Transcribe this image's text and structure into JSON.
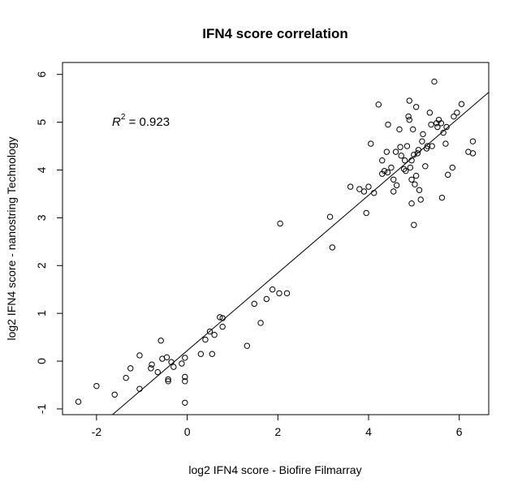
{
  "chart_data": {
    "type": "scatter",
    "title": "IFN4 score correlation",
    "xlabel": "log2 IFN4 score - Biofire Filmarray",
    "ylabel": "log2 IFN4 score - nanostring Technology",
    "xlim": [
      -2.75,
      6.65
    ],
    "ylim": [
      -1.12,
      6.25
    ],
    "xticks": [
      -2,
      0,
      2,
      4,
      6
    ],
    "yticks": [
      -1,
      0,
      1,
      2,
      3,
      4,
      5,
      6
    ],
    "grid": false,
    "legend": "none",
    "annotation": {
      "var": "R",
      "exponent": "2",
      "text": " = 0.923",
      "x": -1.7,
      "y": 4.9
    },
    "fit_line": {
      "intercept": 0.22,
      "slope": 0.813
    },
    "points": [
      [
        -2.4,
        -0.85
      ],
      [
        -2.0,
        -0.52
      ],
      [
        -1.6,
        -0.7
      ],
      [
        -1.35,
        -0.35
      ],
      [
        -1.25,
        -0.15
      ],
      [
        -1.05,
        0.12
      ],
      [
        -1.05,
        -0.58
      ],
      [
        -0.8,
        -0.15
      ],
      [
        -0.78,
        -0.07
      ],
      [
        -0.65,
        -0.23
      ],
      [
        -0.58,
        0.43
      ],
      [
        -0.55,
        0.05
      ],
      [
        -0.45,
        0.08
      ],
      [
        -0.42,
        -0.38
      ],
      [
        -0.42,
        -0.42
      ],
      [
        -0.35,
        -0.02
      ],
      [
        -0.3,
        -0.12
      ],
      [
        -0.12,
        -0.05
      ],
      [
        -0.05,
        0.07
      ],
      [
        -0.05,
        -0.33
      ],
      [
        -0.05,
        -0.42
      ],
      [
        -0.05,
        -0.87
      ],
      [
        0.3,
        0.15
      ],
      [
        0.4,
        0.45
      ],
      [
        0.5,
        0.62
      ],
      [
        0.55,
        0.15
      ],
      [
        0.6,
        0.55
      ],
      [
        0.72,
        0.92
      ],
      [
        0.78,
        0.9
      ],
      [
        0.78,
        0.72
      ],
      [
        1.32,
        0.32
      ],
      [
        1.48,
        1.2
      ],
      [
        1.62,
        0.8
      ],
      [
        1.75,
        1.3
      ],
      [
        1.88,
        1.5
      ],
      [
        2.03,
        1.42
      ],
      [
        2.05,
        2.88
      ],
      [
        2.2,
        1.42
      ],
      [
        3.15,
        3.02
      ],
      [
        3.2,
        2.38
      ],
      [
        3.6,
        3.65
      ],
      [
        3.8,
        3.6
      ],
      [
        3.9,
        3.55
      ],
      [
        3.95,
        3.1
      ],
      [
        4.0,
        3.65
      ],
      [
        4.05,
        4.55
      ],
      [
        4.12,
        3.52
      ],
      [
        4.22,
        5.37
      ],
      [
        4.3,
        3.92
      ],
      [
        4.3,
        4.2
      ],
      [
        4.35,
        3.98
      ],
      [
        4.4,
        4.38
      ],
      [
        4.42,
        3.95
      ],
      [
        4.43,
        4.95
      ],
      [
        4.5,
        4.05
      ],
      [
        4.55,
        3.55
      ],
      [
        4.55,
        3.8
      ],
      [
        4.6,
        4.38
      ],
      [
        4.62,
        3.68
      ],
      [
        4.68,
        4.85
      ],
      [
        4.7,
        4.48
      ],
      [
        4.72,
        4.3
      ],
      [
        4.78,
        4.02
      ],
      [
        4.8,
        4.2
      ],
      [
        4.82,
        3.98
      ],
      [
        4.85,
        4.5
      ],
      [
        4.88,
        5.12
      ],
      [
        4.9,
        5.05
      ],
      [
        4.9,
        5.45
      ],
      [
        4.92,
        4.05
      ],
      [
        4.95,
        4.2
      ],
      [
        4.95,
        3.3
      ],
      [
        4.95,
        3.8
      ],
      [
        4.98,
        4.85
      ],
      [
        5.0,
        2.85
      ],
      [
        5.0,
        4.32
      ],
      [
        5.02,
        3.7
      ],
      [
        5.05,
        3.88
      ],
      [
        5.05,
        5.32
      ],
      [
        5.08,
        4.35
      ],
      [
        5.1,
        4.42
      ],
      [
        5.12,
        3.58
      ],
      [
        5.15,
        3.38
      ],
      [
        5.18,
        4.6
      ],
      [
        5.2,
        4.75
      ],
      [
        5.25,
        4.08
      ],
      [
        5.28,
        4.45
      ],
      [
        5.3,
        4.5
      ],
      [
        5.35,
        5.2
      ],
      [
        5.38,
        4.95
      ],
      [
        5.4,
        4.5
      ],
      [
        5.45,
        5.85
      ],
      [
        5.5,
        4.98
      ],
      [
        5.52,
        4.9
      ],
      [
        5.55,
        5.05
      ],
      [
        5.6,
        4.98
      ],
      [
        5.62,
        3.42
      ],
      [
        5.65,
        4.78
      ],
      [
        5.7,
        4.55
      ],
      [
        5.72,
        4.9
      ],
      [
        5.75,
        3.9
      ],
      [
        5.85,
        4.05
      ],
      [
        5.88,
        5.12
      ],
      [
        5.95,
        5.2
      ],
      [
        6.05,
        5.38
      ],
      [
        6.2,
        4.38
      ],
      [
        6.3,
        4.6
      ],
      [
        6.3,
        4.35
      ]
    ]
  }
}
